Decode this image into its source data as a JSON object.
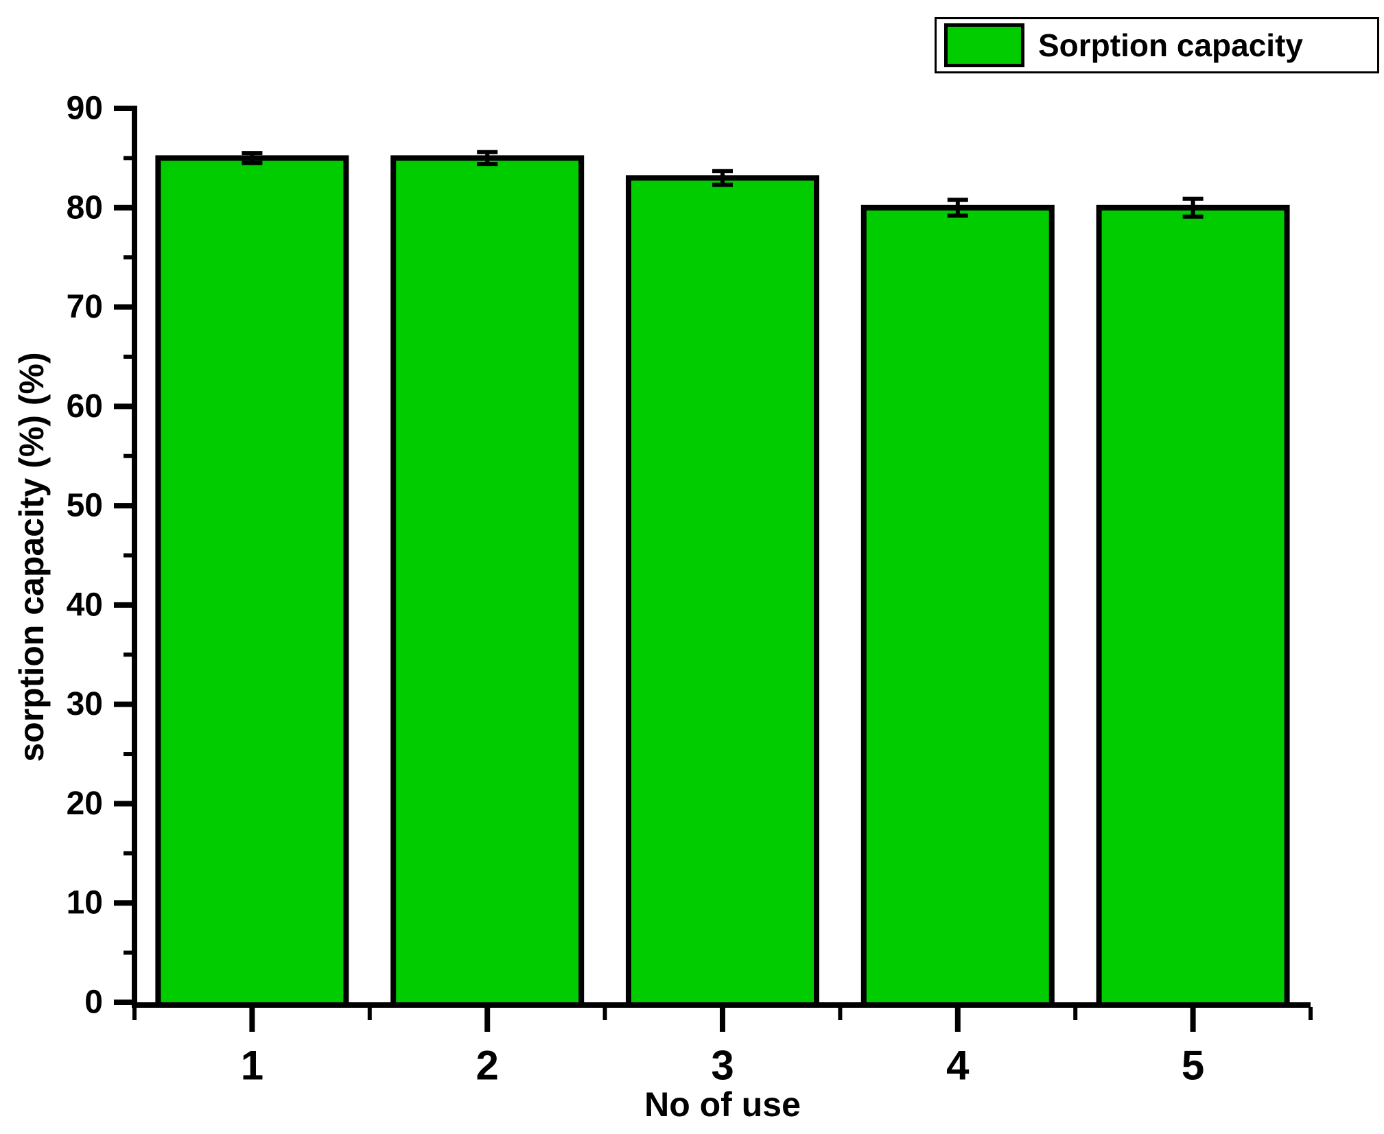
{
  "legend": {
    "label": "Sorption capacity",
    "swatch_color": "#00CC00",
    "border_color": "#000000",
    "position": "top-right"
  },
  "chart_data": {
    "type": "bar",
    "title": "",
    "xlabel": "No of use",
    "ylabel": "sorption capacity (%) (%)",
    "categories": [
      1,
      2,
      3,
      4,
      5
    ],
    "values": [
      85,
      85,
      83,
      80,
      80
    ],
    "error_bars": [
      0.5,
      0.6,
      0.7,
      0.8,
      0.9
    ],
    "series_name": "Sorption capacity",
    "bar_color": "#00CC00",
    "bar_edge_color": "#000000",
    "axis_color": "#000000",
    "xlim": [
      0.5,
      5.5
    ],
    "ylim": [
      0,
      90
    ],
    "y_major_ticks": [
      0,
      10,
      20,
      30,
      40,
      50,
      60,
      70,
      80,
      90
    ],
    "y_minor_step": 5,
    "x_major_ticks": [
      1,
      2,
      3,
      4,
      5
    ],
    "x_minor_ticks": [
      0.5,
      1.5,
      2.5,
      3.5,
      4.5,
      5.5
    ],
    "grid": false,
    "legend_position": "top-right"
  }
}
